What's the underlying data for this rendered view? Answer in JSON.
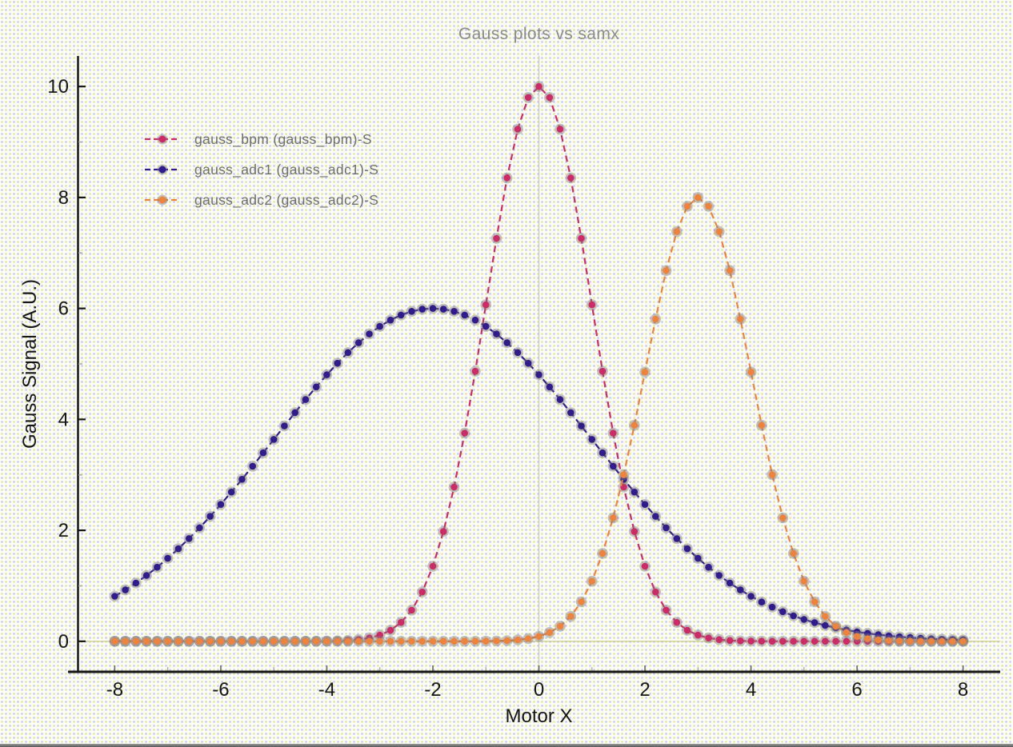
{
  "title": "Gauss plots vs samx",
  "axes": {
    "x_label": "Motor X",
    "y_label": "Gauss Signal (A.U.)",
    "x_ticks": [
      -8,
      -6,
      -4,
      -2,
      0,
      2,
      4,
      6,
      8
    ],
    "x_minor_ticks": [
      -7,
      -5,
      -3,
      -1,
      1,
      3,
      5,
      7
    ],
    "y_ticks": [
      0,
      2,
      4,
      6,
      8,
      10
    ],
    "y_minor_ticks": [
      1,
      3,
      5,
      7,
      9
    ],
    "x_range": [
      -8.7,
      8.7
    ],
    "y_range": [
      -0.55,
      10.55
    ]
  },
  "legend": {
    "items": [
      {
        "label": "gauss_bpm (gauss_bpm)-S"
      },
      {
        "label": "gauss_adc1 (gauss_adc1)-S"
      },
      {
        "label": "gauss_adc2 (gauss_adc2)-S"
      }
    ]
  },
  "colors": {
    "series": [
      "#CF2A68",
      "#321B8D",
      "#EF833C"
    ],
    "title_text": "#8B8B8B",
    "legend_text": "#6E6E6E",
    "axis": "#151515",
    "major_tick_x": "#666666",
    "minor_tick": "#AAAAAA",
    "zero_line": "#C9C98A",
    "center_gridline": "#CDCDC2",
    "marker_halo": "rgba(122,122,122,0.45)"
  },
  "chart_data": {
    "type": "line",
    "title": "Gauss plots vs samx",
    "xlabel": "Motor X",
    "ylabel": "Gauss Signal (A.U.)",
    "xlim": [
      -8.7,
      8.7
    ],
    "ylim": [
      -0.55,
      10.55
    ],
    "grid": "single vertical gridline at x=0; pale olive horizontal line at y=0",
    "legend_position": "top-left inside plot",
    "marker_style": "filled circle with translucent gray halo, dashed connecting line",
    "x_sampling": {
      "start": -8,
      "step": 0.2,
      "count": 81
    },
    "series": [
      {
        "name": "gauss_bpm (gauss_bpm)-S",
        "color": "#CF2A68",
        "model": "gaussian",
        "amplitude": 10,
        "center": 0,
        "sigma": 1,
        "peak": [
          0,
          10
        ]
      },
      {
        "name": "gauss_adc1 (gauss_adc1)-S",
        "color": "#321B8D",
        "model": "gaussian",
        "amplitude": 6,
        "center": -2,
        "sigma": 3,
        "peak": [
          -2,
          6
        ]
      },
      {
        "name": "gauss_adc2 (gauss_adc2)-S",
        "color": "#EF833C",
        "model": "gaussian",
        "amplitude": 8,
        "center": 3,
        "sigma": 1,
        "peak": [
          3,
          8
        ]
      }
    ]
  }
}
